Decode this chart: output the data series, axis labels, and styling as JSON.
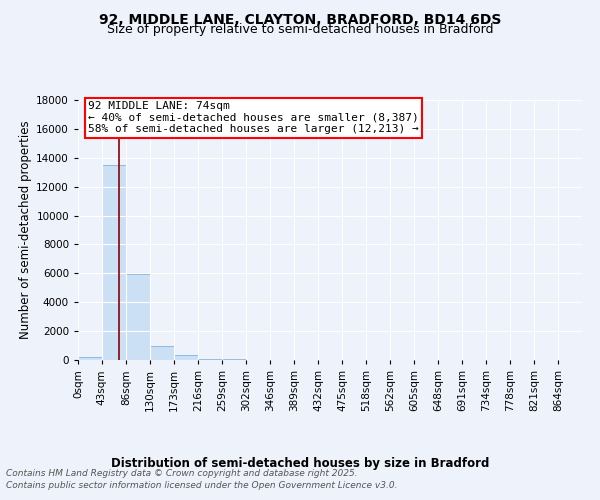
{
  "title_line1": "92, MIDDLE LANE, CLAYTON, BRADFORD, BD14 6DS",
  "title_line2": "Size of property relative to semi-detached houses in Bradford",
  "xlabel": "Distribution of semi-detached houses by size in Bradford",
  "ylabel": "Number of semi-detached properties",
  "footer_line1": "Contains HM Land Registry data © Crown copyright and database right 2025.",
  "footer_line2": "Contains public sector information licensed under the Open Government Licence v3.0.",
  "annotation_title": "92 MIDDLE LANE: 74sqm",
  "annotation_line1": "← 40% of semi-detached houses are smaller (8,387)",
  "annotation_line2": "58% of semi-detached houses are larger (12,213) →",
  "bar_color": "#cce0f5",
  "bar_edge_color": "#7fb3e0",
  "vline_color": "#8b0000",
  "vline_x": 74,
  "bin_width": 43,
  "bin_starts": [
    0,
    43,
    86,
    130,
    173,
    216,
    259,
    302,
    346,
    389,
    432,
    475,
    518,
    562,
    605,
    648,
    691,
    734,
    778,
    821
  ],
  "bin_labels": [
    "0sqm",
    "43sqm",
    "86sqm",
    "130sqm",
    "173sqm",
    "216sqm",
    "259sqm",
    "302sqm",
    "346sqm",
    "389sqm",
    "432sqm",
    "475sqm",
    "518sqm",
    "562sqm",
    "605sqm",
    "648sqm",
    "691sqm",
    "734sqm",
    "778sqm",
    "821sqm",
    "864sqm"
  ],
  "bar_heights": [
    180,
    13500,
    5950,
    1000,
    320,
    100,
    40,
    15,
    8,
    4,
    3,
    2,
    1,
    1,
    1,
    1,
    0,
    0,
    0,
    0
  ],
  "ylim": [
    0,
    18000
  ],
  "yticks": [
    0,
    2000,
    4000,
    6000,
    8000,
    10000,
    12000,
    14000,
    16000,
    18000
  ],
  "background_color": "#eef2fa",
  "plot_bg_color": "#eef2fa",
  "grid_color": "#ffffff",
  "title_fontsize": 10,
  "subtitle_fontsize": 9,
  "axis_label_fontsize": 8.5,
  "tick_fontsize": 7.5,
  "footer_fontsize": 6.5,
  "annotation_fontsize": 8
}
